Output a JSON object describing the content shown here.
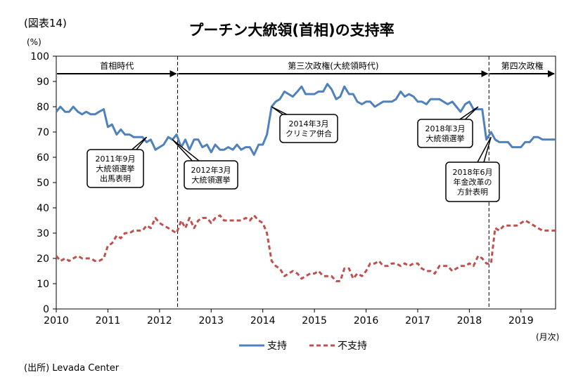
{
  "fig_label": "(図表14)",
  "title": "プーチン大統領(首相)の支持率",
  "source": "(出所) Levada Center",
  "chart_data": {
    "type": "line",
    "ylabel_unit": "(%)",
    "xlabel_unit": "(月次)",
    "ylim": [
      0,
      100
    ],
    "yticks": [
      0,
      10,
      20,
      30,
      40,
      50,
      60,
      70,
      80,
      90,
      100
    ],
    "xlim": [
      2010.0,
      2019.67
    ],
    "xticks": [
      "2010",
      "2011",
      "2012",
      "2013",
      "2014",
      "2015",
      "2016",
      "2017",
      "2018",
      "2019"
    ],
    "grid": false,
    "legend_position": "bottom-center",
    "periods": [
      {
        "label": "首相時代",
        "start": 2010.0,
        "end": 2012.35
      },
      {
        "label": "第三次政権(大統領時代)",
        "start": 2012.35,
        "end": 2018.38
      },
      {
        "label": "第四次政権",
        "start": 2018.38,
        "end": 2019.67
      }
    ],
    "dividers": [
      2012.35,
      2018.38
    ],
    "series": [
      {
        "name": "支持",
        "color": "#4F81BD",
        "style": "solid",
        "x": [
          2010.0,
          2010.08,
          2010.17,
          2010.25,
          2010.33,
          2010.42,
          2010.5,
          2010.58,
          2010.67,
          2010.75,
          2010.83,
          2010.92,
          2011.0,
          2011.08,
          2011.17,
          2011.25,
          2011.33,
          2011.42,
          2011.5,
          2011.58,
          2011.67,
          2011.75,
          2011.83,
          2011.92,
          2012.0,
          2012.08,
          2012.17,
          2012.25,
          2012.33,
          2012.42,
          2012.5,
          2012.58,
          2012.67,
          2012.75,
          2012.83,
          2012.92,
          2013.0,
          2013.08,
          2013.17,
          2013.25,
          2013.33,
          2013.42,
          2013.5,
          2013.58,
          2013.67,
          2013.75,
          2013.83,
          2013.92,
          2014.0,
          2014.08,
          2014.17,
          2014.25,
          2014.33,
          2014.42,
          2014.5,
          2014.58,
          2014.67,
          2014.75,
          2014.83,
          2014.92,
          2015.0,
          2015.08,
          2015.17,
          2015.25,
          2015.33,
          2015.42,
          2015.5,
          2015.58,
          2015.67,
          2015.75,
          2015.83,
          2015.92,
          2016.0,
          2016.08,
          2016.17,
          2016.25,
          2016.33,
          2016.42,
          2016.5,
          2016.58,
          2016.67,
          2016.75,
          2016.83,
          2016.92,
          2017.0,
          2017.08,
          2017.17,
          2017.25,
          2017.33,
          2017.42,
          2017.5,
          2017.58,
          2017.67,
          2017.75,
          2017.83,
          2017.92,
          2018.0,
          2018.08,
          2018.17,
          2018.25,
          2018.33,
          2018.42,
          2018.5,
          2018.58,
          2018.67,
          2018.75,
          2018.83,
          2018.92,
          2019.0,
          2019.08,
          2019.17,
          2019.25,
          2019.33,
          2019.42,
          2019.5,
          2019.58,
          2019.67
        ],
        "values": [
          78,
          80,
          78,
          78,
          80,
          78,
          77,
          78,
          77,
          77,
          78,
          79,
          72,
          73,
          69,
          71,
          69,
          69,
          68,
          68,
          68,
          66,
          67,
          63,
          64,
          65,
          68,
          67,
          69,
          64,
          67,
          63,
          67,
          67,
          64,
          65,
          62,
          65,
          63,
          63,
          64,
          63,
          65,
          63,
          64,
          64,
          61,
          65,
          65,
          69,
          80,
          82,
          83,
          86,
          85,
          84,
          86,
          88,
          85,
          85,
          85,
          86,
          86,
          89,
          87,
          83,
          84,
          88,
          85,
          85,
          82,
          81,
          82,
          82,
          80,
          81,
          82,
          82,
          82,
          83,
          86,
          84,
          85,
          84,
          82,
          82,
          81,
          83,
          83,
          83,
          82,
          81,
          82,
          80,
          78,
          81,
          82,
          79,
          79,
          79,
          67,
          70,
          67,
          66,
          66,
          66,
          64,
          64,
          64,
          66,
          66,
          68,
          68,
          67,
          67,
          67,
          67
        ],
        "legend": "支持"
      },
      {
        "name": "不支持",
        "color": "#C0504D",
        "style": "dashed",
        "x": [
          2010.0,
          2010.08,
          2010.17,
          2010.25,
          2010.33,
          2010.42,
          2010.5,
          2010.58,
          2010.67,
          2010.75,
          2010.83,
          2010.92,
          2011.0,
          2011.08,
          2011.17,
          2011.25,
          2011.33,
          2011.42,
          2011.5,
          2011.58,
          2011.67,
          2011.75,
          2011.83,
          2011.92,
          2012.0,
          2012.08,
          2012.17,
          2012.25,
          2012.33,
          2012.42,
          2012.5,
          2012.58,
          2012.67,
          2012.75,
          2012.83,
          2012.92,
          2013.0,
          2013.08,
          2013.17,
          2013.25,
          2013.33,
          2013.42,
          2013.5,
          2013.58,
          2013.67,
          2013.75,
          2013.83,
          2013.92,
          2014.0,
          2014.08,
          2014.17,
          2014.25,
          2014.33,
          2014.42,
          2014.5,
          2014.58,
          2014.67,
          2014.75,
          2014.83,
          2014.92,
          2015.0,
          2015.08,
          2015.17,
          2015.25,
          2015.33,
          2015.42,
          2015.5,
          2015.58,
          2015.67,
          2015.75,
          2015.83,
          2015.92,
          2016.0,
          2016.08,
          2016.17,
          2016.25,
          2016.33,
          2016.42,
          2016.5,
          2016.58,
          2016.67,
          2016.75,
          2016.83,
          2016.92,
          2017.0,
          2017.08,
          2017.17,
          2017.25,
          2017.33,
          2017.42,
          2017.5,
          2017.58,
          2017.67,
          2017.75,
          2017.83,
          2017.92,
          2018.0,
          2018.08,
          2018.17,
          2018.25,
          2018.33,
          2018.42,
          2018.5,
          2018.58,
          2018.67,
          2018.75,
          2018.83,
          2018.92,
          2019.0,
          2019.08,
          2019.17,
          2019.25,
          2019.33,
          2019.42,
          2019.5,
          2019.58,
          2019.67
        ],
        "values": [
          21,
          19,
          20,
          19,
          20,
          21,
          20,
          20,
          20,
          19,
          19,
          20,
          25,
          26,
          29,
          28,
          30,
          30,
          31,
          31,
          31,
          33,
          32,
          36,
          34,
          33,
          32,
          31,
          30,
          35,
          32,
          36,
          32,
          35,
          36,
          36,
          34,
          36,
          37,
          35,
          35,
          35,
          35,
          35,
          36,
          35,
          37,
          35,
          34,
          30,
          19,
          17,
          16,
          13,
          14,
          15,
          14,
          12,
          13,
          14,
          14,
          15,
          13,
          13,
          13,
          11,
          11,
          16,
          16,
          12,
          14,
          13,
          15,
          18,
          18,
          19,
          17,
          17,
          18,
          18,
          17,
          18,
          17,
          18,
          18,
          16,
          15,
          15,
          14,
          17,
          17,
          17,
          15,
          16,
          17,
          17,
          18,
          17,
          21,
          20,
          18,
          18,
          32,
          31,
          33,
          33,
          33,
          33,
          34,
          35,
          34,
          33,
          32,
          31,
          31,
          31,
          31
        ],
        "legend": "不支持"
      }
    ],
    "annotations": [
      {
        "lines": [
          "2011年9月",
          "大統領選挙",
          "出馬表明"
        ],
        "target_x": 2011.75,
        "target_y": 68
      },
      {
        "lines": [
          "2012年3月",
          "大統領選挙"
        ],
        "target_x": 2012.25,
        "target_y": 67
      },
      {
        "lines": [
          "2014年3月",
          "クリミア併合"
        ],
        "target_x": 2014.17,
        "target_y": 80
      },
      {
        "lines": [
          "2018年3月",
          "大統領選挙"
        ],
        "target_x": 2018.17,
        "target_y": 80
      },
      {
        "lines": [
          "2018年6月",
          "年金改革の",
          "方針表明"
        ],
        "target_x": 2018.42,
        "target_y": 68
      }
    ]
  }
}
